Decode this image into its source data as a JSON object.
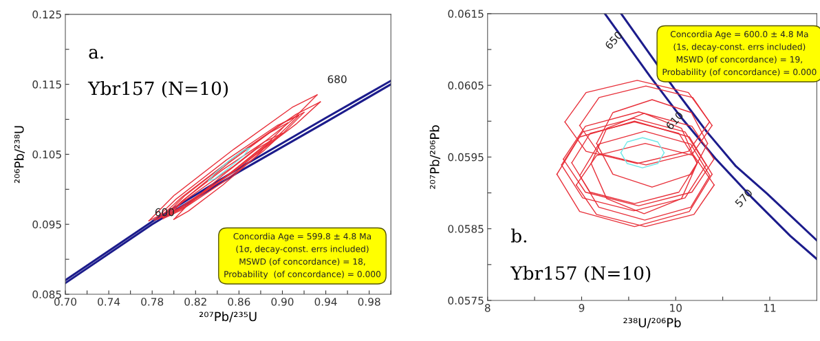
{
  "chart_data": [
    {
      "type": "line",
      "title": "a.",
      "subtitle": "Ybr157 (N=10)",
      "xlabel": "²⁰⁷Pb/²³⁵U",
      "ylabel": "²⁰⁶Pb/²³⁸U",
      "xlim": [
        0.7,
        1.0
      ],
      "ylim": [
        0.085,
        0.125
      ],
      "xticks": [
        {
          "value": 0.7,
          "label": "0.70"
        },
        {
          "value": 0.72,
          "label": null
        },
        0.74,
        {
          "value": 0.76,
          "label": null
        },
        0.78,
        {
          "value": 0.8,
          "label": null
        },
        0.82,
        {
          "value": 0.84,
          "label": null
        },
        0.86,
        {
          "value": 0.88,
          "label": null
        },
        {
          "value": 0.9,
          "label": "0.90"
        },
        {
          "value": 0.92,
          "label": null
        },
        0.94,
        {
          "value": 0.96,
          "label": null
        },
        0.98,
        {
          "value": 1.0,
          "label": null
        }
      ],
      "yticks": [
        0.085,
        {
          "value": 0.09,
          "label": null
        },
        0.095,
        {
          "value": 0.1,
          "label": null
        },
        0.105,
        {
          "value": 0.11,
          "label": null
        },
        0.115,
        {
          "value": 0.12,
          "label": null
        },
        0.125
      ],
      "grid": false,
      "marker": "none",
      "line_style": "solid",
      "annotations": [
        "600",
        "680",
        "Concordia Age = 599.8 ± 4.8 Ma\n(1σ, decay-const. errs included)\nMSWD (of concordance) = 18,\nProbability  (of concordance) = 0.000"
      ],
      "series": [
        {
          "color": "#1c1c8c",
          "x": [
            0.7,
            0.78,
            0.86,
            0.94,
            1.0
          ],
          "values": [
            0.087,
            0.0954,
            0.103,
            0.1102,
            0.1155
          ]
        },
        {
          "color": "#1c1c8c",
          "x": [
            0.7,
            0.78,
            0.86,
            0.94,
            1.0
          ],
          "values": [
            0.0866,
            0.095,
            0.1025,
            0.1096,
            0.115
          ]
        },
        {
          "color": "#e8303a",
          "x": [
            0.777,
            0.8,
            0.855,
            0.909,
            0.932
          ],
          "values": [
            0.0955,
            0.0991,
            0.1057,
            0.1117,
            0.1135
          ]
        },
        {
          "color": "#e8303a",
          "x": [
            0.777,
            0.8,
            0.855,
            0.909,
            0.932
          ],
          "values": [
            0.0955,
            0.0973,
            0.1033,
            0.1099,
            0.1135
          ]
        },
        {
          "color": "#e8303a",
          "x": [
            0.785,
            0.8075,
            0.86,
            0.9125,
            0.935
          ],
          "values": [
            0.0957,
            0.0989,
            0.1051,
            0.1107,
            0.1125
          ]
        },
        {
          "color": "#e8303a",
          "x": [
            0.785,
            0.8075,
            0.86,
            0.9125,
            0.935
          ],
          "values": [
            0.0957,
            0.0975,
            0.1031,
            0.1093,
            0.1125
          ]
        },
        {
          "color": "#e8303a",
          "x": [
            0.79,
            0.8095,
            0.855,
            0.9005,
            0.92
          ],
          "values": [
            0.096,
            0.099,
            0.1045,
            0.1095,
            0.111
          ]
        },
        {
          "color": "#e8303a",
          "x": [
            0.79,
            0.8095,
            0.855,
            0.9005,
            0.92
          ],
          "values": [
            0.096,
            0.0975,
            0.1025,
            0.108,
            0.111
          ]
        },
        {
          "color": "#e8303a",
          "x": [
            0.795,
            0.8115,
            0.85,
            0.8885,
            0.905
          ],
          "values": [
            0.0962,
            0.0988,
            0.1037,
            0.1081,
            0.1095
          ]
        },
        {
          "color": "#e8303a",
          "x": [
            0.795,
            0.8115,
            0.85,
            0.8885,
            0.905
          ],
          "values": [
            0.0962,
            0.0976,
            0.1021,
            0.1069,
            0.1095
          ]
        },
        {
          "color": "#e8303a",
          "x": [
            0.79,
            0.8065,
            0.845,
            0.8835,
            0.9
          ],
          "values": [
            0.0958,
            0.0982,
            0.1028,
            0.1068,
            0.108
          ]
        },
        {
          "color": "#e8303a",
          "x": [
            0.79,
            0.8065,
            0.845,
            0.8835,
            0.9
          ],
          "values": [
            0.0958,
            0.097,
            0.101,
            0.1056,
            0.108
          ]
        },
        {
          "color": "#e8303a",
          "x": [
            0.8,
            0.8135,
            0.845,
            0.8765,
            0.89
          ],
          "values": [
            0.0957,
            0.0979,
            0.102,
            0.1058,
            0.107
          ]
        },
        {
          "color": "#e8303a",
          "x": [
            0.8,
            0.8135,
            0.845,
            0.8765,
            0.89
          ],
          "values": [
            0.0957,
            0.0969,
            0.1006,
            0.1048,
            0.107
          ]
        },
        {
          "color": "#e8303a",
          "x": [
            0.782,
            0.802,
            0.8485,
            0.895,
            0.915
          ],
          "values": [
            0.0956,
            0.0986,
            0.1042,
            0.1091,
            0.1105
          ]
        },
        {
          "color": "#e8303a",
          "x": [
            0.782,
            0.802,
            0.8485,
            0.895,
            0.915
          ],
          "values": [
            0.0956,
            0.097,
            0.1019,
            0.1075,
            0.1105
          ]
        },
        {
          "color": "#6ee8e8",
          "x": [
            0.832,
            0.8377,
            0.851,
            0.8643,
            0.87
          ],
          "values": [
            0.1012,
            0.1023,
            0.1041,
            0.1056,
            0.1059
          ]
        },
        {
          "color": "#6ee8e8",
          "x": [
            0.832,
            0.8377,
            0.851,
            0.8643,
            0.87
          ],
          "values": [
            0.1012,
            0.1015,
            0.1031,
            0.1048,
            0.1059
          ]
        }
      ]
    },
    {
      "type": "line",
      "title": "b.",
      "subtitle": "Ybr157 (N=10)",
      "xlabel": "²³⁸U/²⁰⁶Pb",
      "ylabel": "²⁰⁷Pb/²⁰⁶Pb",
      "xlim": [
        8,
        11.5
      ],
      "ylim": [
        0.0575,
        0.0615
      ],
      "xticks": [
        8,
        {
          "value": 8.5,
          "label": null
        },
        9,
        {
          "value": 9.5,
          "label": null
        },
        10,
        {
          "value": 10.5,
          "label": null
        },
        11
      ],
      "yticks": [
        0.0575,
        {
          "value": 0.058,
          "label": null
        },
        0.0585,
        {
          "value": 0.059,
          "label": null
        },
        0.0595,
        {
          "value": 0.06,
          "label": null
        },
        0.0605,
        {
          "value": 0.061,
          "label": null
        },
        0.0615
      ],
      "grid": false,
      "marker": "none",
      "line_style": "solid",
      "annotations": [
        "650",
        "610",
        "570",
        "Concordia Age = 600.0 ± 4.8 Ma\n(1s, decay-const. errs included)\nMSWD (of concordance) = 19,\nProbability (of concordance) = 0.000"
      ],
      "series": [
        {
          "color": "#1c1c8c",
          "x": [
            9.247,
            9.73,
            10.065,
            10.422,
            10.806,
            11.218,
            11.498
          ],
          "values": [
            0.0615,
            0.06062,
            0.06004,
            0.05948,
            0.05894,
            0.0584,
            0.05808
          ]
        },
        {
          "color": "#1c1c8c",
          "x": [
            9.42,
            9.982,
            10.326,
            10.641,
            10.971,
            11.498
          ],
          "values": [
            0.0615,
            0.06046,
            0.05986,
            0.05937,
            0.05899,
            0.05834
          ]
        },
        {
          "color": "#e8303a",
          "x": [
            8.822,
            9.047,
            9.591,
            10.135,
            10.36
          ],
          "values": [
            0.05999,
            0.0604,
            0.06057,
            0.0604,
            0.05999
          ]
        },
        {
          "color": "#e8303a",
          "x": [
            8.822,
            9.047,
            9.591,
            10.135,
            10.36
          ],
          "values": [
            0.05999,
            0.05958,
            0.05941,
            0.05958,
            0.05999
          ]
        },
        {
          "color": "#e8303a",
          "x": [
            8.979,
            9.185,
            9.683,
            10.181,
            10.387
          ],
          "values": [
            0.05994,
            0.06033,
            0.06049,
            0.06033,
            0.05994
          ]
        },
        {
          "color": "#e8303a",
          "x": [
            8.979,
            9.185,
            9.683,
            10.181,
            10.387
          ],
          "values": [
            0.05994,
            0.05955,
            0.05939,
            0.05955,
            0.05994
          ]
        },
        {
          "color": "#e8303a",
          "x": [
            9.159,
            9.332,
            9.749,
            10.166,
            10.339
          ],
          "values": [
            0.05969,
            0.06012,
            0.0603,
            0.06012,
            0.05969
          ]
        },
        {
          "color": "#e8303a",
          "x": [
            9.159,
            9.332,
            9.749,
            10.166,
            10.339
          ],
          "values": [
            0.05969,
            0.05926,
            0.05908,
            0.05926,
            0.05969
          ]
        },
        {
          "color": "#e8303a",
          "x": [
            8.895,
            9.09,
            9.562,
            10.034,
            10.229
          ],
          "values": [
            0.05942,
            0.05983,
            0.05999,
            0.05983,
            0.05942
          ]
        },
        {
          "color": "#e8303a",
          "x": [
            8.895,
            9.09,
            9.562,
            10.034,
            10.229
          ],
          "values": [
            0.05942,
            0.05901,
            0.05885,
            0.05901,
            0.05942
          ]
        },
        {
          "color": "#e8303a",
          "x": [
            8.737,
            8.979,
            9.562,
            10.145,
            10.387
          ],
          "values": [
            0.05926,
            0.05978,
            0.06,
            0.05978,
            0.05926
          ]
        },
        {
          "color": "#e8303a",
          "x": [
            8.737,
            8.979,
            9.562,
            10.145,
            10.387
          ],
          "values": [
            0.05926,
            0.05874,
            0.05853,
            0.05874,
            0.05926
          ]
        },
        {
          "color": "#e8303a",
          "x": [
            8.805,
            9.04,
            9.606,
            10.172,
            10.407
          ],
          "values": [
            0.05947,
            0.05993,
            0.06013,
            0.05993,
            0.05947
          ]
        },
        {
          "color": "#e8303a",
          "x": [
            8.805,
            9.04,
            9.606,
            10.172,
            10.407
          ],
          "values": [
            0.05947,
            0.05901,
            0.05882,
            0.05901,
            0.05947
          ]
        },
        {
          "color": "#e8303a",
          "x": [
            8.943,
            9.158,
            9.676,
            10.194,
            10.409
          ],
          "values": [
            0.05911,
            0.05952,
            0.05969,
            0.05952,
            0.05911
          ]
        },
        {
          "color": "#e8303a",
          "x": [
            8.943,
            9.158,
            9.676,
            10.194,
            10.409
          ],
          "values": [
            0.05911,
            0.0587,
            0.05853,
            0.0587,
            0.05911
          ]
        },
        {
          "color": "#e8303a",
          "x": [
            9.101,
            9.266,
            9.664,
            10.062,
            10.227
          ],
          "values": [
            0.05941,
            0.0599,
            0.06011,
            0.0599,
            0.05941
          ]
        },
        {
          "color": "#e8303a",
          "x": [
            9.101,
            9.266,
            9.664,
            10.062,
            10.227
          ],
          "values": [
            0.05941,
            0.05892,
            0.05871,
            0.05892,
            0.05941
          ]
        },
        {
          "color": "#e8303a",
          "x": [
            8.98,
            9.182,
            9.671,
            10.16,
            10.362
          ],
          "values": [
            0.05924,
            0.05968,
            0.05986,
            0.05968,
            0.05924
          ]
        },
        {
          "color": "#e8303a",
          "x": [
            8.98,
            9.182,
            9.671,
            10.16,
            10.362
          ],
          "values": [
            0.05924,
            0.0588,
            0.05862,
            0.0588,
            0.05924
          ]
        },
        {
          "color": "#e8303a",
          "x": [
            8.786,
            9.011,
            9.555,
            10.099,
            10.324
          ],
          "values": [
            0.05939,
            0.05985,
            0.06004,
            0.05985,
            0.05939
          ]
        },
        {
          "color": "#e8303a",
          "x": [
            8.786,
            9.011,
            9.555,
            10.099,
            10.324
          ],
          "values": [
            0.05939,
            0.05893,
            0.05875,
            0.05893,
            0.05939
          ]
        },
        {
          "color": "#6ee8e8",
          "x": [
            9.417,
            9.484,
            9.647,
            9.81,
            9.877
          ],
          "values": [
            0.05956,
            0.05971,
            0.05977,
            0.05971,
            0.05956
          ]
        },
        {
          "color": "#6ee8e8",
          "x": [
            9.417,
            9.484,
            9.647,
            9.81,
            9.877
          ],
          "values": [
            0.05956,
            0.05941,
            0.05935,
            0.05941,
            0.05956
          ]
        }
      ]
    }
  ]
}
